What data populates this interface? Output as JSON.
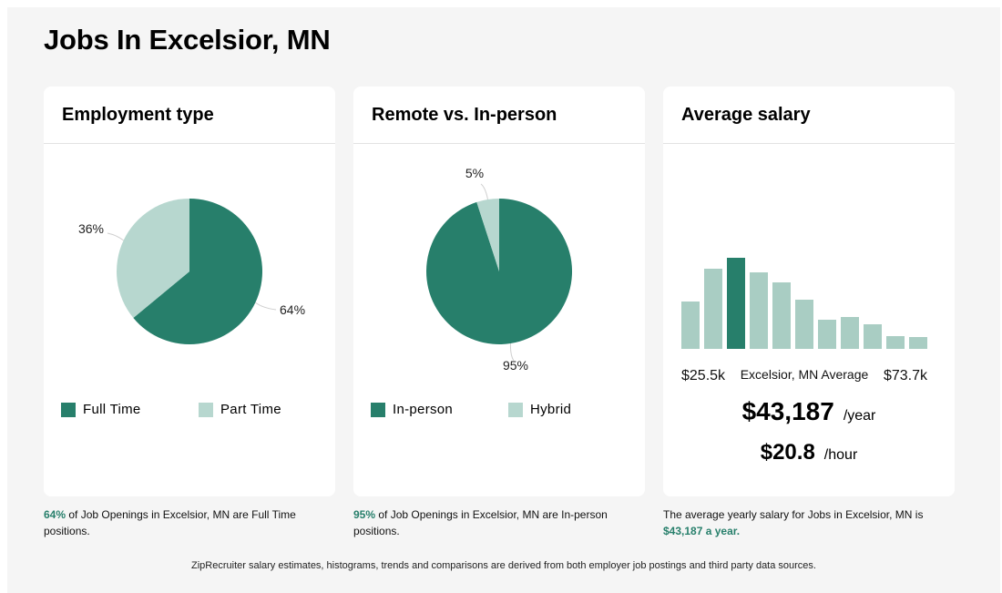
{
  "page_title": "Jobs In Excelsior, MN",
  "colors": {
    "primary": "#277f6b",
    "light": "#b7d7cf",
    "medium": "#a9cdc3"
  },
  "employment": {
    "title": "Employment type",
    "legend": [
      "Full Time",
      "Part Time"
    ],
    "labels": [
      "64%",
      "36%"
    ],
    "caption_pct": "64%",
    "caption_text": " of Job Openings in Excelsior, MN are Full Time positions."
  },
  "remote": {
    "title": "Remote vs. In-person",
    "legend": [
      "In-person",
      "Hybrid"
    ],
    "labels": [
      "95%",
      "5%"
    ],
    "caption_pct": "95%",
    "caption_text": " of Job Openings in Excelsior, MN are In-person positions."
  },
  "salary": {
    "title": "Average salary",
    "min_label": "$25.5k",
    "avg_label": "Excelsior, MN Average",
    "max_label": "$73.7k",
    "yearly": "$43,187",
    "yearly_unit": "/year",
    "hourly": "$20.8",
    "hourly_unit": "/hour",
    "caption_text": "The average yearly salary for Jobs in Excelsior, MN is ",
    "caption_highlight": "$43,187 a year."
  },
  "footer": "ZipRecruiter salary estimates, histograms, trends and comparisons are derived from both employer job postings and third party data sources.",
  "chart_data": [
    {
      "type": "pie",
      "title": "Employment type",
      "categories": [
        "Full Time",
        "Part Time"
      ],
      "values": [
        64,
        36
      ]
    },
    {
      "type": "pie",
      "title": "Remote vs. In-person",
      "categories": [
        "In-person",
        "Hybrid"
      ],
      "values": [
        95,
        5
      ]
    },
    {
      "type": "bar",
      "title": "Average salary",
      "values": [
        52,
        88,
        100,
        84,
        73,
        54,
        32,
        35,
        27,
        14,
        13
      ],
      "highlight_index": 2,
      "xlabel_min": "$25.5k",
      "xlabel_max": "$73.7k"
    }
  ]
}
